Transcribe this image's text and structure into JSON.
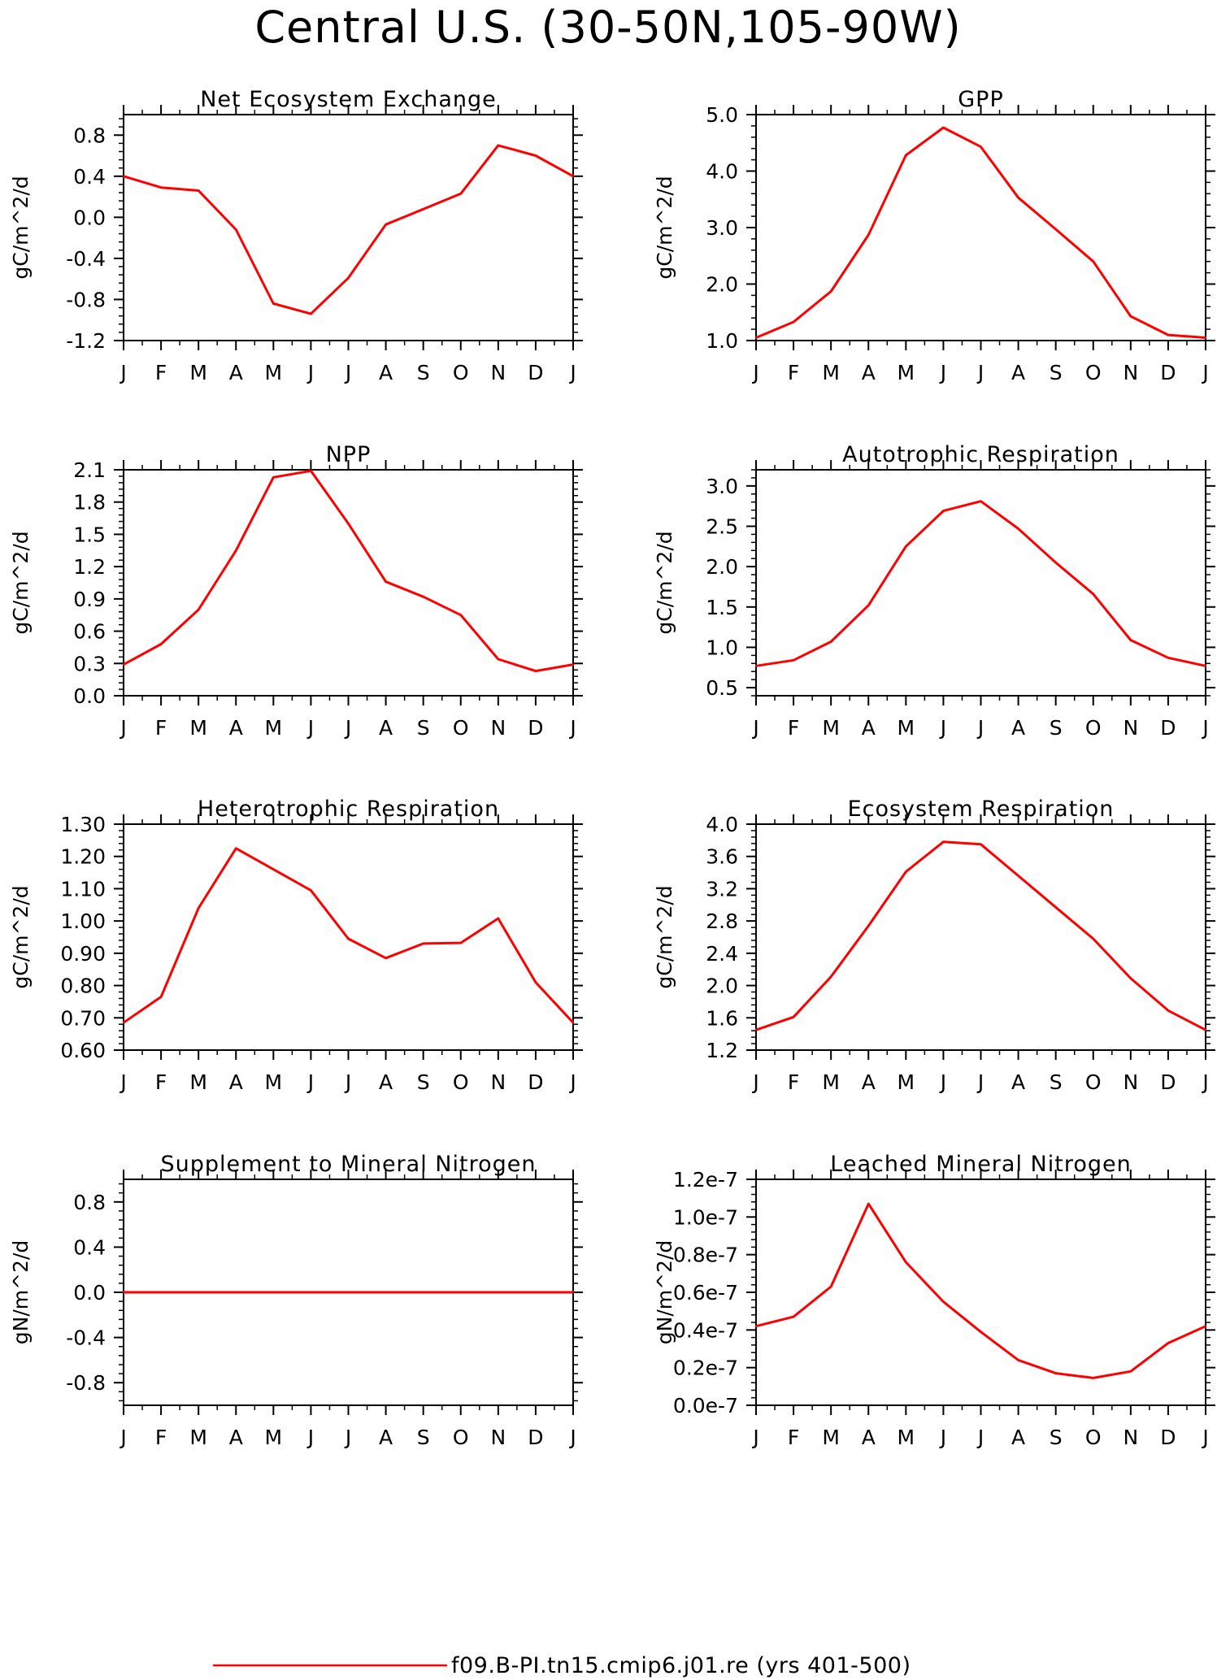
{
  "title": "Central U.S. (30-50N,105-90W)",
  "legend": {
    "label": "f09.B-PI.tn15.cmip6.j01.re (yrs 401-500)",
    "color": "#ff0000"
  },
  "chart_data": [
    {
      "type": "line",
      "title": "Net Ecosystem Exchange",
      "ylabel": "gC/m^2/d",
      "x": [
        "J",
        "F",
        "M",
        "A",
        "M",
        "J",
        "J",
        "A",
        "S",
        "O",
        "N",
        "D",
        "J"
      ],
      "ylim": [
        -1.2,
        1.0
      ],
      "yticks": [
        -1.2,
        -0.8,
        -0.4,
        0.0,
        0.4,
        0.8
      ],
      "ytick_labels": [
        "-1.2",
        "-0.8",
        "-0.4",
        "0.0",
        "0.4",
        "0.8"
      ],
      "series": [
        {
          "values": [
            0.4,
            0.29,
            0.26,
            -0.12,
            -0.84,
            -0.94,
            -0.59,
            -0.07,
            0.08,
            0.23,
            0.7,
            0.6,
            0.4
          ]
        }
      ]
    },
    {
      "type": "line",
      "title": "GPP",
      "ylabel": "gC/m^2/d",
      "x": [
        "J",
        "F",
        "M",
        "A",
        "M",
        "J",
        "J",
        "A",
        "S",
        "O",
        "N",
        "D",
        "J"
      ],
      "ylim": [
        1.0,
        5.0
      ],
      "yticks": [
        1.0,
        2.0,
        3.0,
        4.0,
        5.0
      ],
      "ytick_labels": [
        "1.0",
        "2.0",
        "3.0",
        "4.0",
        "5.0"
      ],
      "series": [
        {
          "values": [
            1.05,
            1.33,
            1.87,
            2.87,
            4.28,
            4.77,
            4.43,
            3.53,
            2.97,
            2.4,
            1.43,
            1.1,
            1.05
          ]
        }
      ]
    },
    {
      "type": "line",
      "title": "NPP",
      "ylabel": "gC/m^2/d",
      "x": [
        "J",
        "F",
        "M",
        "A",
        "M",
        "J",
        "J",
        "A",
        "S",
        "O",
        "N",
        "D",
        "J"
      ],
      "ylim": [
        0.0,
        2.1
      ],
      "yticks": [
        0.0,
        0.3,
        0.6,
        0.9,
        1.2,
        1.5,
        1.8,
        2.1
      ],
      "ytick_labels": [
        "0.0",
        "0.3",
        "0.6",
        "0.9",
        "1.2",
        "1.5",
        "1.8",
        "2.1"
      ],
      "series": [
        {
          "values": [
            0.29,
            0.48,
            0.8,
            1.35,
            2.03,
            2.09,
            1.6,
            1.06,
            0.92,
            0.75,
            0.34,
            0.23,
            0.29
          ]
        }
      ]
    },
    {
      "type": "line",
      "title": "Autotrophic Respiration",
      "ylabel": "gC/m^2/d",
      "x": [
        "J",
        "F",
        "M",
        "A",
        "M",
        "J",
        "J",
        "A",
        "S",
        "O",
        "N",
        "D",
        "J"
      ],
      "ylim": [
        0.4,
        3.2
      ],
      "yticks": [
        0.5,
        1.0,
        1.5,
        2.0,
        2.5,
        3.0
      ],
      "ytick_labels": [
        "0.5",
        "1.0",
        "1.5",
        "2.0",
        "2.5",
        "3.0"
      ],
      "series": [
        {
          "values": [
            0.77,
            0.84,
            1.07,
            1.52,
            2.25,
            2.69,
            2.81,
            2.47,
            2.05,
            1.66,
            1.09,
            0.87,
            0.77
          ]
        }
      ]
    },
    {
      "type": "line",
      "title": "Heterotrophic Respiration",
      "ylabel": "gC/m^2/d",
      "x": [
        "J",
        "F",
        "M",
        "A",
        "M",
        "J",
        "J",
        "A",
        "S",
        "O",
        "N",
        "D",
        "J"
      ],
      "ylim": [
        0.6,
        1.3
      ],
      "yticks": [
        0.6,
        0.7,
        0.8,
        0.9,
        1.0,
        1.1,
        1.2,
        1.3
      ],
      "ytick_labels": [
        "0.60",
        "0.70",
        "0.80",
        "0.90",
        "1.00",
        "1.10",
        "1.20",
        "1.30"
      ],
      "series": [
        {
          "values": [
            0.685,
            0.765,
            1.04,
            1.225,
            1.16,
            1.095,
            0.945,
            0.885,
            0.93,
            0.932,
            1.008,
            0.81,
            0.685
          ]
        }
      ]
    },
    {
      "type": "line",
      "title": "Ecosystem Respiration",
      "ylabel": "gC/m^2/d",
      "x": [
        "J",
        "F",
        "M",
        "A",
        "M",
        "J",
        "J",
        "A",
        "S",
        "O",
        "N",
        "D",
        "J"
      ],
      "ylim": [
        1.2,
        4.0
      ],
      "yticks": [
        1.2,
        1.6,
        2.0,
        2.4,
        2.8,
        3.2,
        3.6,
        4.0
      ],
      "ytick_labels": [
        "1.2",
        "1.6",
        "2.0",
        "2.4",
        "2.8",
        "3.2",
        "3.6",
        "4.0"
      ],
      "series": [
        {
          "values": [
            1.45,
            1.61,
            2.11,
            2.74,
            3.41,
            3.78,
            3.75,
            3.36,
            2.97,
            2.58,
            2.09,
            1.69,
            1.45
          ]
        }
      ]
    },
    {
      "type": "line",
      "title": "Supplement to Mineral Nitrogen",
      "ylabel": "gN/m^2/d",
      "x": [
        "J",
        "F",
        "M",
        "A",
        "M",
        "J",
        "J",
        "A",
        "S",
        "O",
        "N",
        "D",
        "J"
      ],
      "ylim": [
        -1.0,
        1.0
      ],
      "yticks": [
        -0.8,
        -0.4,
        0.0,
        0.4,
        0.8
      ],
      "ytick_labels": [
        "-0.8",
        "-0.4",
        "0.0",
        "0.4",
        "0.8"
      ],
      "series": [
        {
          "values": [
            0,
            0,
            0,
            0,
            0,
            0,
            0,
            0,
            0,
            0,
            0,
            0,
            0
          ]
        }
      ]
    },
    {
      "type": "line",
      "title": "Leached Mineral Nitrogen",
      "ylabel": "gN/m^2/d",
      "x": [
        "J",
        "F",
        "M",
        "A",
        "M",
        "J",
        "J",
        "A",
        "S",
        "O",
        "N",
        "D",
        "J"
      ],
      "ylim": [
        0.0,
        1.2e-07
      ],
      "yticks": [
        0.0,
        2e-08,
        4e-08,
        6e-08,
        8e-08,
        1e-07,
        1.2e-07
      ],
      "ytick_labels": [
        "0.0e-7",
        "0.2e-7",
        "0.4e-7",
        "0.6e-7",
        "0.8e-7",
        "1.0e-7",
        "1.2e-7"
      ],
      "series": [
        {
          "values": [
            4.2e-08,
            4.7e-08,
            6.3e-08,
            1.07e-07,
            7.6e-08,
            5.5e-08,
            3.9e-08,
            2.4e-08,
            1.7e-08,
            1.45e-08,
            1.8e-08,
            3.3e-08,
            4.2e-08
          ]
        }
      ]
    }
  ]
}
